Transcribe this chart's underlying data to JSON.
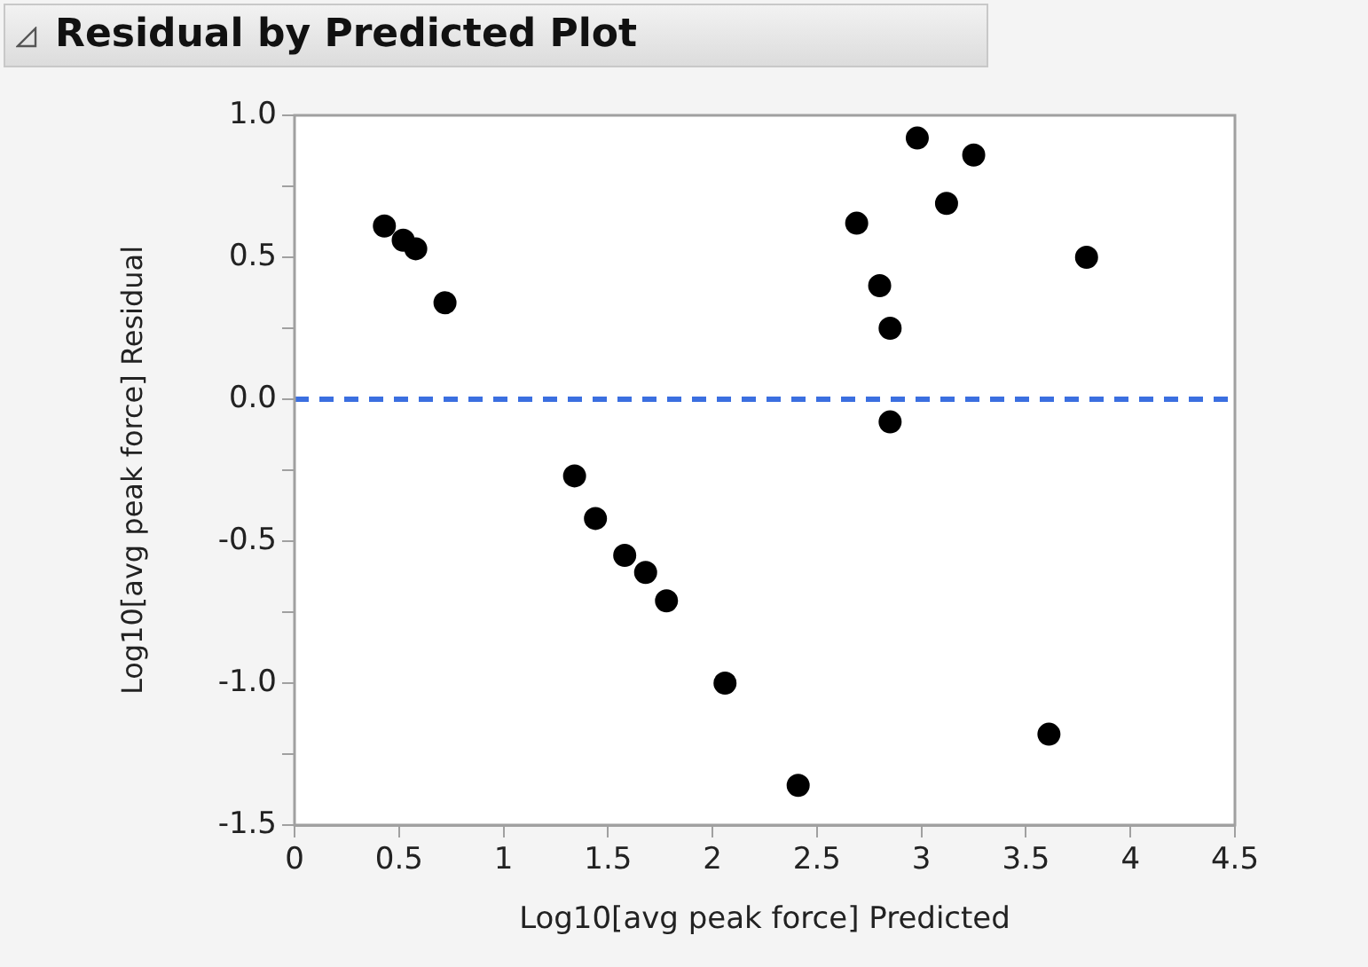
{
  "chart_data": {
    "type": "scatter",
    "title": "Residual by Predicted Plot",
    "xlabel": "Log10[avg peak force] Predicted",
    "ylabel": "Log10[avg peak force] Residual",
    "series": [
      {
        "color": "#000000",
        "x": [
          0.43,
          0.52,
          0.58,
          0.72,
          1.34,
          1.44,
          1.58,
          1.68,
          1.78,
          2.06,
          2.41,
          3.61,
          2.98,
          3.25,
          3.12,
          2.69,
          3.79,
          2.8,
          2.85,
          2.85
        ],
        "values": [
          0.61,
          0.56,
          0.53,
          0.34,
          -0.27,
          -0.42,
          -0.55,
          -0.61,
          -0.71,
          -1.0,
          -1.36,
          -1.18,
          0.92,
          0.86,
          0.69,
          0.62,
          0.5,
          0.4,
          0.25,
          -0.08
        ]
      }
    ],
    "xlim": [
      0,
      4.5
    ],
    "xticks": [
      0,
      0.5,
      1,
      1.5,
      2,
      2.5,
      3,
      3.5,
      4,
      4.5
    ],
    "ylim": [
      -1.5,
      1.0
    ],
    "yticks": [
      {
        "value": -1.5,
        "label": "-1.5"
      },
      {
        "value": -1.25,
        "label": null
      },
      {
        "value": -1,
        "label": "-1.0"
      },
      {
        "value": -0.75,
        "label": null
      },
      {
        "value": -0.5,
        "label": "-0.5"
      },
      {
        "value": -0.25,
        "label": null
      },
      {
        "value": 0,
        "label": "0.0"
      },
      {
        "value": 0.25,
        "label": null
      },
      {
        "value": 0.5,
        "label": "0.5"
      },
      {
        "value": 0.75,
        "label": null
      },
      {
        "value": 1,
        "label": "1.0"
      }
    ],
    "ref_lines": [
      {
        "axis": "y",
        "value": 0,
        "color": "#3b6fe0",
        "line_style": "dashed"
      }
    ],
    "legend": false,
    "marker": "circle"
  }
}
